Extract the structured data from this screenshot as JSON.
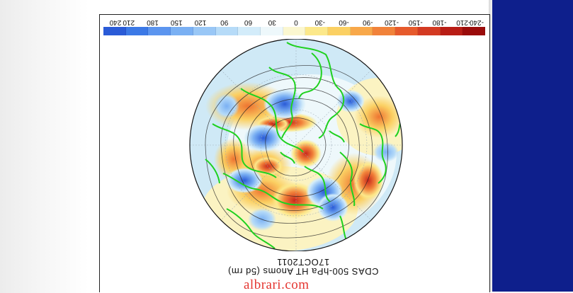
{
  "figure": {
    "title": "CDAS 500-hPa HT Anoms (5d rm)",
    "date": "17OCT2011",
    "scale_labels": [
      "-240",
      "-210",
      "-180",
      "-150",
      "-120",
      "-90",
      "-60",
      "-30",
      "0",
      "30",
      "60",
      "90",
      "120",
      "150",
      "180",
      "210",
      "240"
    ],
    "scale_colors": [
      "#2a5bd7",
      "#3c79e6",
      "#5c95ef",
      "#7ab0f3",
      "#99c7f6",
      "#b6dbf8",
      "#d3ecfa",
      "#eef8fb",
      "#fbf7d0",
      "#fce88a",
      "#fbd063",
      "#f8a84a",
      "#f1823a",
      "#e65a2c",
      "#d33a22",
      "#b81d15",
      "#9a0b0a"
    ],
    "colors": {
      "background_band": "#0e1f8c",
      "coastline": "#1fd11f",
      "contour": "#222222"
    }
  },
  "watermark": {
    "text": "albrari.com"
  }
}
